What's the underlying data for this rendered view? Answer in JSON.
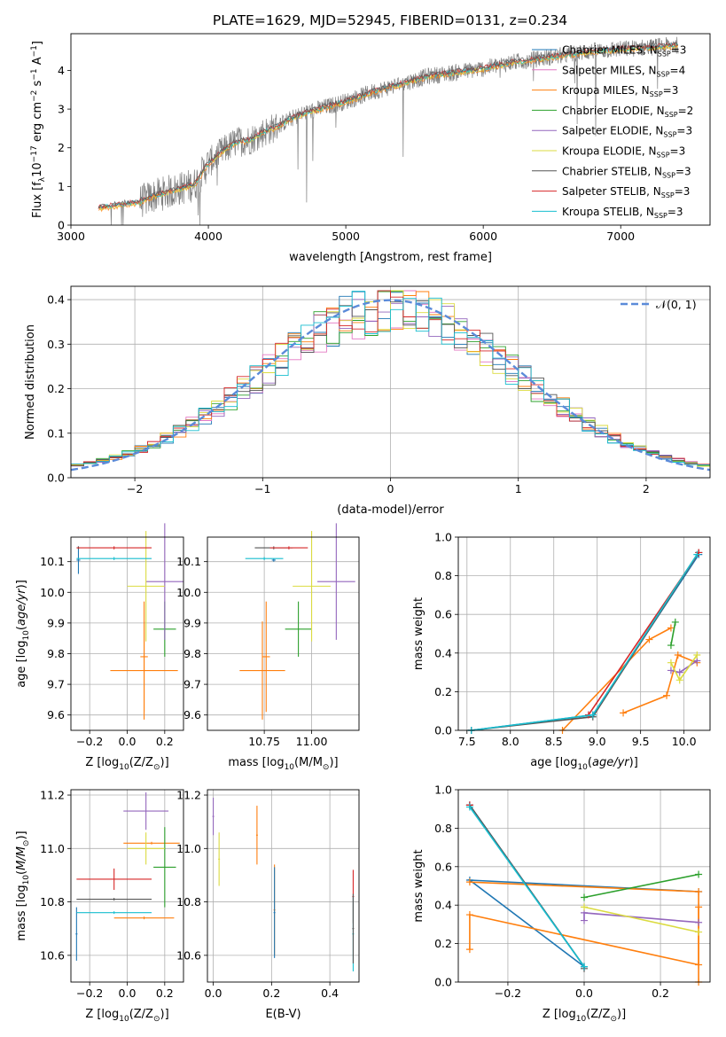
{
  "figure": {
    "title": "PLATE=1629, MJD=52945, FIBERID=0131, z=0.234"
  },
  "colors": {
    "Chabrier MILES": "#1f77b4",
    "Salpeter MILES": "#ff7f0e",
    "Kroupa MILES": "#ff7f0e",
    "Chabrier ELODIE": "#2ca02c",
    "Salpeter ELODIE": "#9467bd",
    "Kroupa ELODIE": "#dbdb40",
    "Chabrier STELIB": "#555555",
    "Salpeter STELIB": "#d62728",
    "Kroupa STELIB": "#17becf",
    "data": "#808080",
    "normal": "#5b8bd9"
  },
  "legend_models": [
    {
      "pre": "Chabrier MILES, N",
      "sub": "SSP",
      "post": "=3",
      "color": "#1f77b4"
    },
    {
      "pre": "Salpeter MILES, N",
      "sub": "SSP",
      "post": "=4",
      "color": "#e377c2"
    },
    {
      "pre": "Kroupa MILES, N",
      "sub": "SSP",
      "post": "=3",
      "color": "#ff7f0e"
    },
    {
      "pre": "Chabrier ELODIE, N",
      "sub": "SSP",
      "post": "=2",
      "color": "#2ca02c"
    },
    {
      "pre": "Salpeter ELODIE, N",
      "sub": "SSP",
      "post": "=3",
      "color": "#9467bd"
    },
    {
      "pre": "Kroupa ELODIE, N",
      "sub": "SSP",
      "post": "=3",
      "color": "#dbdb40"
    },
    {
      "pre": "Chabrier STELIB, N",
      "sub": "SSP",
      "post": "=3",
      "color": "#555555"
    },
    {
      "pre": "Salpeter STELIB, N",
      "sub": "SSP",
      "post": "=3",
      "color": "#d62728"
    },
    {
      "pre": "Kroupa STELIB, N",
      "sub": "SSP",
      "post": "=3",
      "color": "#17becf"
    }
  ],
  "chart_data": [
    {
      "id": "spectrum",
      "type": "line",
      "xlabel": "wavelength [Angstrom, rest frame]",
      "ylabel_pre": "Flux [f",
      "ylabel_sub": "λ",
      "ylabel_mid": "10",
      "ylabel_sup": "−17",
      "ylabel_post": " erg cm",
      "ylabel_sup2": "−2",
      "ylabel_post2": " s",
      "ylabel_sup3": "−1",
      "ylabel_post3": " A",
      "ylabel_sup4": "−1",
      "ylabel_end": "]",
      "xlim": [
        3000,
        7650
      ],
      "ylim": [
        0,
        4.95
      ],
      "xticks": [
        3000,
        4000,
        5000,
        6000,
        7000
      ],
      "yticks": [
        0,
        1,
        2,
        3,
        4
      ],
      "grid": false,
      "continuum": {
        "x": [
          3200,
          3400,
          3500,
          3600,
          3700,
          3800,
          3900,
          4000,
          4100,
          4200,
          4300,
          4400,
          4500,
          4600,
          4700,
          4800,
          4900,
          5000,
          5200,
          5400,
          5600,
          5800,
          6000,
          6200,
          6400,
          6600,
          6800,
          7000,
          7200,
          7400
        ],
        "y": [
          0.45,
          0.55,
          0.6,
          0.75,
          0.85,
          0.95,
          1.05,
          1.6,
          1.9,
          2.15,
          2.2,
          2.4,
          2.55,
          2.75,
          2.9,
          3.0,
          3.1,
          3.2,
          3.45,
          3.65,
          3.85,
          3.95,
          4.05,
          4.2,
          4.3,
          4.4,
          4.5,
          4.55,
          4.6,
          4.65
        ]
      }
    },
    {
      "id": "residuals",
      "type": "histogram",
      "xlabel": "(data-model)/error",
      "ylabel": "Normed distribution",
      "xlim": [
        -2.5,
        2.5
      ],
      "ylim": [
        0,
        0.43
      ],
      "xticks": [
        -2,
        -1,
        0,
        1,
        2
      ],
      "xticklabels": [
        "−2",
        "−1",
        "0",
        "1",
        "2"
      ],
      "yticks": [
        0.0,
        0.1,
        0.2,
        0.3,
        0.4
      ],
      "grid": true,
      "legend": {
        "label": "𝒩(0, 1)",
        "placement": "top-right"
      }
    },
    {
      "id": "age_vs_Z",
      "type": "errorbar",
      "xlabel_pre": "Z [log",
      "xlabel_sub": "10",
      "xlabel_post": "(Z/Z",
      "ylabel": "age  [log10(age/yr)]",
      "xlim": [
        -0.3,
        0.3
      ],
      "ylim": [
        9.55,
        10.18
      ],
      "xticks": [
        -0.2,
        0.0,
        0.2
      ],
      "xticklabels": [
        "−0.2",
        "0.0",
        "0.2"
      ],
      "yticks": [
        9.6,
        9.7,
        9.8,
        9.9,
        10.0,
        10.1
      ],
      "points": [
        {
          "model": "Chabrier MILES",
          "x": -0.26,
          "xe": 0.01,
          "y": 10.105,
          "ye": 0.045
        },
        {
          "model": "Kroupa MILES",
          "x": 0.09,
          "xe": 0.18,
          "y": 9.745,
          "ye": 0.16
        },
        {
          "model": "Salpeter MILES",
          "x": 0.09,
          "xe": 0.02,
          "y": 9.79,
          "ye": 0.18
        },
        {
          "model": "Chabrier ELODIE",
          "x": 0.2,
          "xe": 0.06,
          "y": 9.88,
          "ye": 0.09
        },
        {
          "model": "Salpeter ELODIE",
          "x": 0.2,
          "xe": 0.1,
          "y": 10.035,
          "ye": 0.19
        },
        {
          "model": "Kroupa ELODIE",
          "x": 0.1,
          "xe": 0.1,
          "y": 10.02,
          "ye": 0.18
        },
        {
          "model": "Chabrier STELIB",
          "x": -0.26,
          "xe": 0.005,
          "y": 10.145,
          "ye": 0.005
        },
        {
          "model": "Salpeter STELIB",
          "x": -0.07,
          "xe": 0.2,
          "y": 10.145,
          "ye": 0.005
        },
        {
          "model": "Kroupa STELIB",
          "x": -0.07,
          "xe": 0.2,
          "y": 10.11,
          "ye": 0.005
        }
      ]
    },
    {
      "id": "age_vs_mass",
      "type": "errorbar",
      "xlabel_pre": "mass [log",
      "xlabel_sub": "10",
      "xlabel_post": "(M/M",
      "ylabel": "",
      "xlim": [
        10.45,
        11.25
      ],
      "ylim": [
        9.55,
        10.18
      ],
      "xticks": [
        10.75,
        11.0
      ],
      "xticklabels": [
        "10.75",
        "11.00"
      ],
      "yticks": [
        9.6,
        9.7,
        9.8,
        9.9,
        10.0,
        10.1
      ],
      "points": [
        {
          "model": "Chabrier MILES",
          "x": 10.8,
          "xe": 0.01,
          "y": 10.105,
          "ye": 0.005
        },
        {
          "model": "Kroupa MILES",
          "x": 10.74,
          "xe": 0.12,
          "y": 9.745,
          "ye": 0.16
        },
        {
          "model": "Salpeter MILES",
          "x": 10.76,
          "xe": 0.02,
          "y": 9.79,
          "ye": 0.18
        },
        {
          "model": "Chabrier ELODIE",
          "x": 10.93,
          "xe": 0.07,
          "y": 9.88,
          "ye": 0.09
        },
        {
          "model": "Salpeter ELODIE",
          "x": 11.13,
          "xe": 0.1,
          "y": 10.035,
          "ye": 0.19
        },
        {
          "model": "Kroupa ELODIE",
          "x": 11.0,
          "xe": 0.1,
          "y": 10.02,
          "ye": 0.18
        },
        {
          "model": "Chabrier STELIB",
          "x": 10.8,
          "xe": 0.1,
          "y": 10.145,
          "ye": 0.005
        },
        {
          "model": "Salpeter STELIB",
          "x": 10.88,
          "xe": 0.1,
          "y": 10.145,
          "ye": 0.005
        },
        {
          "model": "Kroupa STELIB",
          "x": 10.75,
          "xe": 0.1,
          "y": 10.11,
          "ye": 0.005
        }
      ]
    },
    {
      "id": "weight_vs_age",
      "type": "line",
      "xlabel": "age  [log10(age/yr)]",
      "ylabel": "mass weight",
      "xlim": [
        7.4,
        10.3
      ],
      "ylim": [
        0,
        1
      ],
      "xticks": [
        7.5,
        8.0,
        8.5,
        9.0,
        9.5,
        10.0
      ],
      "xticklabels": [
        "7.5",
        "8.0",
        "8.5",
        "9.0",
        "9.5",
        "10.0"
      ],
      "yticks": [
        0,
        0.2,
        0.4,
        0.6,
        0.8,
        1.0
      ],
      "grid": true,
      "series": [
        {
          "model": "Chabrier MILES",
          "x": [
            7.55,
            8.95,
            10.17
          ],
          "y": [
            0.0,
            0.08,
            0.91
          ]
        },
        {
          "model": "Salpeter MILES",
          "x": [
            9.3,
            9.8,
            9.93,
            10.15
          ],
          "y": [
            0.09,
            0.18,
            0.39,
            0.35
          ]
        },
        {
          "model": "Kroupa MILES",
          "x": [
            8.6,
            9.6,
            9.85
          ],
          "y": [
            0.0,
            0.47,
            0.53
          ]
        },
        {
          "model": "Chabrier ELODIE",
          "x": [
            9.85,
            9.9
          ],
          "y": [
            0.44,
            0.56
          ]
        },
        {
          "model": "Salpeter ELODIE",
          "x": [
            9.85,
            9.95,
            10.15
          ],
          "y": [
            0.31,
            0.3,
            0.36
          ]
        },
        {
          "model": "Kroupa ELODIE",
          "x": [
            9.85,
            9.95,
            10.15
          ],
          "y": [
            0.35,
            0.26,
            0.39
          ]
        },
        {
          "model": "Chabrier STELIB",
          "x": [
            7.55,
            8.95,
            10.17
          ],
          "y": [
            0.0,
            0.07,
            0.92
          ]
        },
        {
          "model": "Salpeter STELIB",
          "x": [
            8.9,
            10.17
          ],
          "y": [
            0.08,
            0.92
          ]
        },
        {
          "model": "Kroupa STELIB",
          "x": [
            7.55,
            8.95,
            10.15
          ],
          "y": [
            0.0,
            0.08,
            0.91
          ]
        }
      ]
    },
    {
      "id": "mass_vs_Z",
      "type": "errorbar",
      "xlabel_pre": "Z [log",
      "xlabel_sub": "10",
      "xlabel_post": "(Z/Z",
      "ylabel": "mass [log10(M/M⊙)]",
      "xlim": [
        -0.3,
        0.3
      ],
      "ylim": [
        10.5,
        11.22
      ],
      "xticks": [
        -0.2,
        0.0,
        0.2
      ],
      "xticklabels": [
        "−0.2",
        "0.0",
        "0.2"
      ],
      "yticks": [
        10.6,
        10.8,
        11.0,
        11.2
      ],
      "points": [
        {
          "model": "Chabrier MILES",
          "x": -0.27,
          "xe": 0.005,
          "y": 10.68,
          "ye": 0.1
        },
        {
          "model": "Kroupa MILES",
          "x": 0.09,
          "xe": 0.16,
          "y": 10.74,
          "ye": 0.005
        },
        {
          "model": "Salpeter MILES",
          "x": 0.13,
          "xe": 0.15,
          "y": 11.02,
          "ye": 0.005
        },
        {
          "model": "Chabrier ELODIE",
          "x": 0.2,
          "xe": 0.06,
          "y": 10.93,
          "ye": 0.15
        },
        {
          "model": "Salpeter ELODIE",
          "x": 0.1,
          "xe": 0.12,
          "y": 11.14,
          "ye": 0.07
        },
        {
          "model": "Kroupa ELODIE",
          "x": 0.1,
          "xe": 0.1,
          "y": 11.0,
          "ye": 0.06
        },
        {
          "model": "Chabrier STELIB",
          "x": -0.07,
          "xe": 0.2,
          "y": 10.81,
          "ye": 0.005
        },
        {
          "model": "Salpeter STELIB",
          "x": -0.07,
          "xe": 0.2,
          "y": 10.885,
          "ye": 0.04
        },
        {
          "model": "Kroupa STELIB",
          "x": -0.07,
          "xe": 0.2,
          "y": 10.76,
          "ye": 0.005
        }
      ]
    },
    {
      "id": "mass_vs_EBV",
      "type": "errorbar",
      "xlabel": "E(B-V)",
      "ylabel": "",
      "xlim": [
        -0.02,
        0.5
      ],
      "ylim": [
        10.5,
        11.22
      ],
      "xticks": [
        0.0,
        0.2,
        0.4
      ],
      "xticklabels": [
        "0.0",
        "0.2",
        "0.4"
      ],
      "yticks": [
        10.6,
        10.8,
        11.0,
        11.2
      ],
      "points": [
        {
          "model": "Salpeter ELODIE",
          "x": 0.0,
          "xe": 0.003,
          "y": 11.12,
          "ye": 0.07
        },
        {
          "model": "Kroupa ELODIE",
          "x": 0.02,
          "xe": 0.003,
          "y": 10.96,
          "ye": 0.1
        },
        {
          "model": "Salpeter MILES",
          "x": 0.15,
          "xe": 0.003,
          "y": 11.05,
          "ye": 0.11
        },
        {
          "model": "Kroupa MILES",
          "x": 0.21,
          "xe": 0.003,
          "y": 10.77,
          "ye": 0.17
        },
        {
          "model": "Chabrier MILES",
          "x": 0.21,
          "xe": 0.003,
          "y": 10.76,
          "ye": 0.17
        },
        {
          "model": "Salpeter STELIB",
          "x": 0.48,
          "xe": 0.003,
          "y": 10.82,
          "ye": 0.1
        },
        {
          "model": "Kroupa STELIB",
          "x": 0.48,
          "xe": 0.003,
          "y": 10.68,
          "ye": 0.14
        },
        {
          "model": "Chabrier STELIB",
          "x": 0.48,
          "xe": 0.003,
          "y": 10.7,
          "ye": 0.13
        }
      ]
    },
    {
      "id": "weight_vs_Z",
      "type": "line",
      "xlabel_pre": "Z [log",
      "xlabel_sub": "10",
      "xlabel_post": "(Z/Z",
      "ylabel": "mass weight",
      "xlim": [
        -0.33,
        0.33
      ],
      "ylim": [
        0,
        1
      ],
      "xticks": [
        -0.2,
        0.0,
        0.2
      ],
      "xticklabels": [
        "−0.2",
        "0.0",
        "0.2"
      ],
      "yticks": [
        0,
        0.2,
        0.4,
        0.6,
        0.8,
        1.0
      ],
      "grid": true,
      "series": [
        {
          "model": "Chabrier MILES",
          "x": [
            -0.3,
            0.0,
            -0.3,
            0.3
          ],
          "y": [
            0.92,
            0.08,
            0.53,
            0.47
          ]
        },
        {
          "model": "Salpeter MILES",
          "x": [
            -0.3,
            -0.3,
            0.3,
            0.3
          ],
          "y": [
            0.17,
            0.35,
            0.09,
            0.39
          ]
        },
        {
          "model": "Kroupa MILES",
          "x": [
            -0.3,
            0.3,
            0.3
          ],
          "y": [
            0.52,
            0.47,
            0.0
          ]
        },
        {
          "model": "Chabrier ELODIE",
          "x": [
            0.0,
            0.3
          ],
          "y": [
            0.44,
            0.56
          ]
        },
        {
          "model": "Salpeter ELODIE",
          "x": [
            0.0,
            0.0,
            0.3
          ],
          "y": [
            0.32,
            0.36,
            0.31
          ]
        },
        {
          "model": "Kroupa ELODIE",
          "x": [
            0.0,
            0.3
          ],
          "y": [
            0.39,
            0.26
          ]
        },
        {
          "model": "Chabrier STELIB",
          "x": [
            -0.3,
            0.0,
            0.0
          ],
          "y": [
            0.92,
            0.08,
            0.07
          ]
        },
        {
          "model": "Salpeter STELIB",
          "x": [
            -0.3
          ],
          "y": [
            0.92
          ]
        },
        {
          "model": "Kroupa STELIB",
          "x": [
            -0.3,
            0.0
          ],
          "y": [
            0.91,
            0.08
          ]
        }
      ]
    }
  ]
}
